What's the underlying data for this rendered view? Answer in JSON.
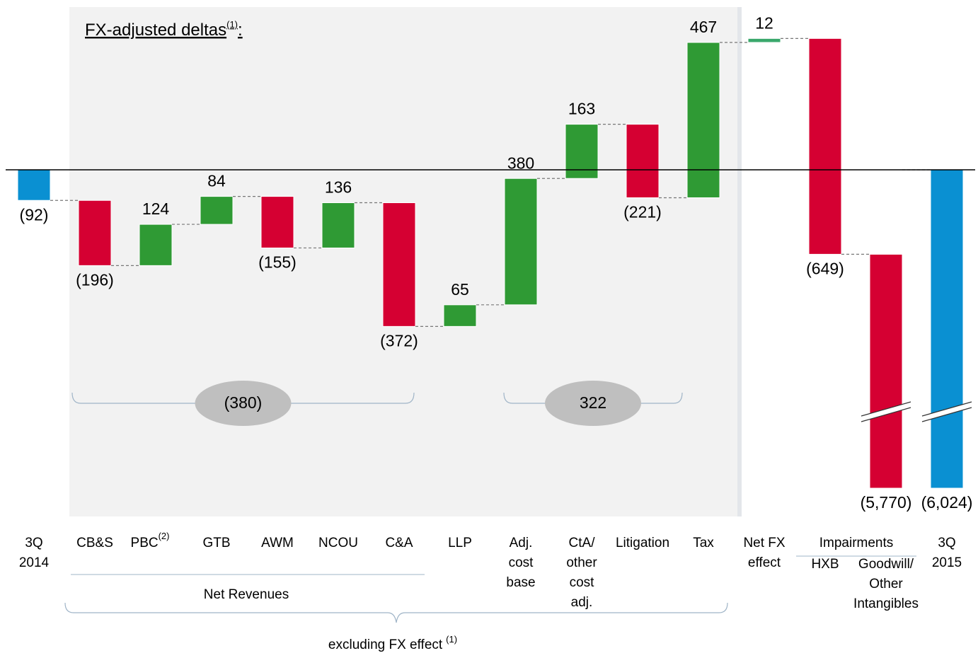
{
  "chart_data": {
    "type": "waterfall",
    "title": "FX-adjusted deltas",
    "title_superscript": "(1)",
    "title_suffix": ":",
    "categories": [
      [
        "3Q",
        "2014"
      ],
      [
        "CB&S"
      ],
      [
        "PBC"
      ],
      [
        "GTB"
      ],
      [
        "AWM"
      ],
      [
        "NCOU"
      ],
      [
        "C&A"
      ],
      [
        "LLP"
      ],
      [
        "Adj.",
        "cost",
        "base"
      ],
      [
        "CtA/",
        "other",
        "cost",
        "adj."
      ],
      [
        "Litigation"
      ],
      [
        "Tax"
      ],
      [
        "Net FX",
        "effect"
      ],
      [
        "HXB"
      ],
      [
        "Goodwill/",
        "Other",
        "Intangibles"
      ],
      [
        "3Q",
        "2015"
      ]
    ],
    "category_superscripts": {
      "2": "(2)"
    },
    "values": [
      -92,
      -196,
      124,
      84,
      -155,
      136,
      -372,
      65,
      380,
      163,
      -221,
      467,
      12,
      -649,
      -5770,
      -6024
    ],
    "value_labels": [
      "(92)",
      "(196)",
      "124",
      "84",
      "(155)",
      "136",
      "(372)",
      "65",
      "380",
      "163",
      "(221)",
      "467",
      "12",
      "(649)",
      "(5,770)",
      "(6,024)"
    ],
    "totals": [
      true,
      false,
      false,
      false,
      false,
      false,
      false,
      false,
      false,
      false,
      false,
      false,
      false,
      false,
      false,
      true
    ],
    "bar_colors": [
      "#0a90d2",
      "#d50032",
      "#2f9a34",
      "#2f9a34",
      "#d50032",
      "#2f9a34",
      "#d50032",
      "#2f9a34",
      "#2f9a34",
      "#2f9a34",
      "#d50032",
      "#2f9a34",
      "#3aa86c",
      "#d50032",
      "#d50032",
      "#0a90d2"
    ],
    "subtotals": [
      -380,
      322
    ],
    "subtotal_labels": [
      "(380)",
      "322"
    ],
    "group_labels": {
      "net_revenues": "Net Revenues",
      "impairments": "Impairments",
      "excluding": "excluding FX effect",
      "excluding_superscript": "(1)"
    }
  }
}
